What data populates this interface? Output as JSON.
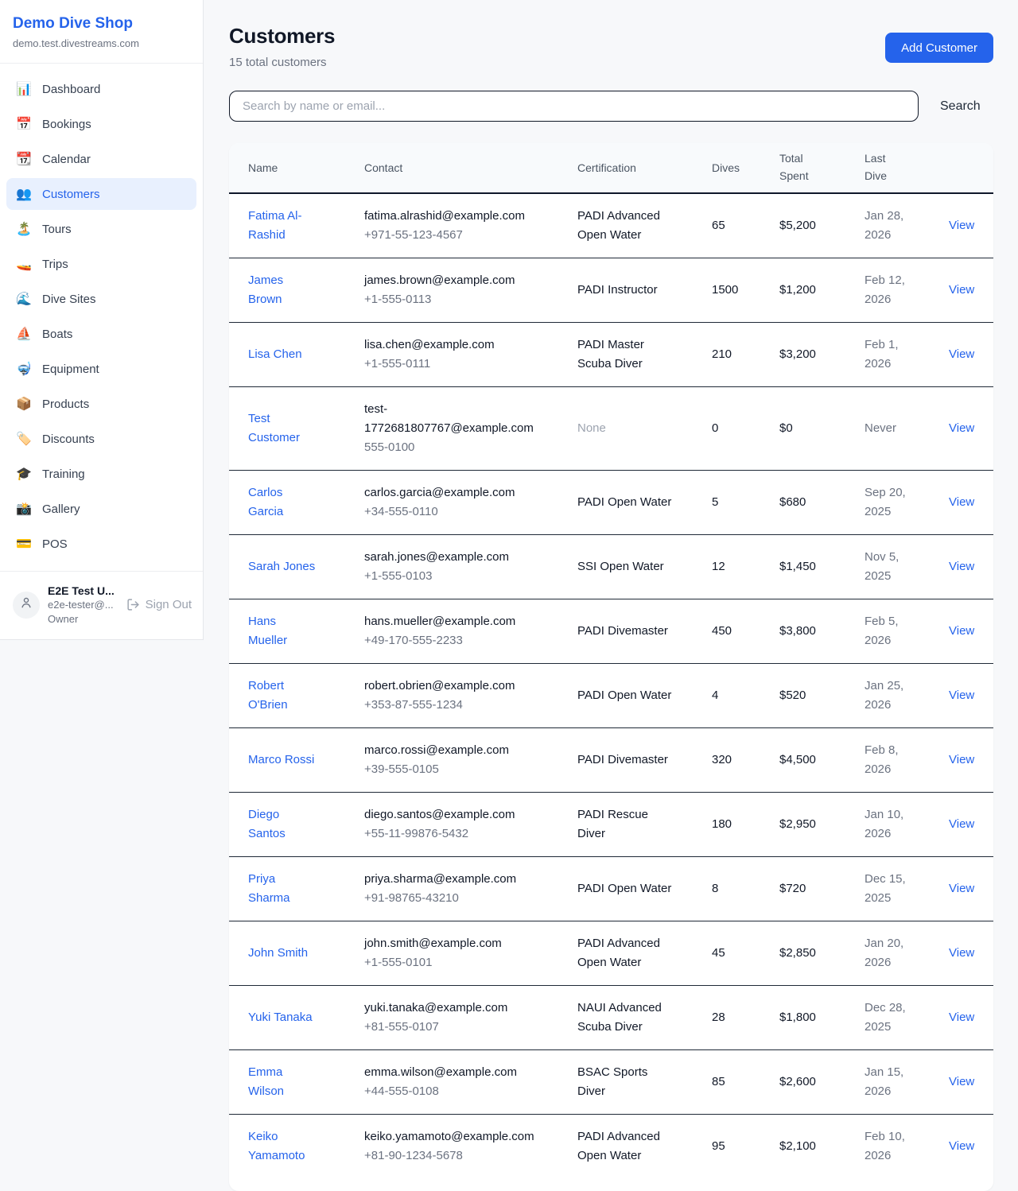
{
  "colors": {
    "accent": "#2563eb",
    "active_nav_bg": "#e8f0fe",
    "page_bg": "#f7f8fa",
    "muted_text": "#9ca3af",
    "dark_border": "#0f172a"
  },
  "sidebar": {
    "shop_name": "Demo Dive Shop",
    "shop_domain": "demo.test.divestreams.com",
    "items": [
      {
        "icon": "📊",
        "icon_name": "bar-chart-icon",
        "label": "Dashboard",
        "active": false
      },
      {
        "icon": "📅",
        "icon_name": "calendar-date-icon",
        "label": "Bookings",
        "active": false
      },
      {
        "icon": "📆",
        "icon_name": "tear-off-calendar-icon",
        "label": "Calendar",
        "active": false
      },
      {
        "icon": "👥",
        "icon_name": "people-icon",
        "label": "Customers",
        "active": true
      },
      {
        "icon": "🏝️",
        "icon_name": "island-icon",
        "label": "Tours",
        "active": false
      },
      {
        "icon": "🚤",
        "icon_name": "speedboat-icon",
        "label": "Trips",
        "active": false
      },
      {
        "icon": "🌊",
        "icon_name": "wave-icon",
        "label": "Dive Sites",
        "active": false
      },
      {
        "icon": "⛵",
        "icon_name": "sailboat-icon",
        "label": "Boats",
        "active": false
      },
      {
        "icon": "🤿",
        "icon_name": "diving-mask-icon",
        "label": "Equipment",
        "active": false
      },
      {
        "icon": "📦",
        "icon_name": "package-icon",
        "label": "Products",
        "active": false
      },
      {
        "icon": "🏷️",
        "icon_name": "tag-icon",
        "label": "Discounts",
        "active": false
      },
      {
        "icon": "🎓",
        "icon_name": "graduation-cap-icon",
        "label": "Training",
        "active": false
      },
      {
        "icon": "📸",
        "icon_name": "camera-flash-icon",
        "label": "Gallery",
        "active": false
      },
      {
        "icon": "💳",
        "icon_name": "credit-card-icon",
        "label": "POS",
        "active": false
      }
    ],
    "user": {
      "name": "E2E Test U...",
      "email": "e2e-tester@...",
      "role": "Owner",
      "sign_out_label": "Sign Out"
    }
  },
  "header": {
    "title": "Customers",
    "subtitle": "15 total customers",
    "add_button_label": "Add Customer"
  },
  "search": {
    "placeholder": "Search by name or email...",
    "button_label": "Search"
  },
  "table": {
    "columns": [
      "Name",
      "Contact",
      "Certification",
      "Dives",
      "Total Spent",
      "Last Dive"
    ],
    "view_label": "View",
    "rows": [
      {
        "name": "Fatima Al-Rashid",
        "email": "fatima.alrashid@example.com",
        "phone": "+971-55-123-4567",
        "certification": "PADI Advanced Open Water",
        "dives": "65",
        "total_spent": "$5,200",
        "last_dive": "Jan 28, 2026"
      },
      {
        "name": "James Brown",
        "email": "james.brown@example.com",
        "phone": "+1-555-0113",
        "certification": "PADI Instructor",
        "dives": "1500",
        "total_spent": "$1,200",
        "last_dive": "Feb 12, 2026"
      },
      {
        "name": "Lisa Chen",
        "email": "lisa.chen@example.com",
        "phone": "+1-555-0111",
        "certification": "PADI Master Scuba Diver",
        "dives": "210",
        "total_spent": "$3,200",
        "last_dive": "Feb 1, 2026"
      },
      {
        "name": "Test Customer",
        "email": "test-1772681807767@example.com",
        "phone": "555-0100",
        "certification": "None",
        "dives": "0",
        "total_spent": "$0",
        "last_dive": "Never"
      },
      {
        "name": "Carlos Garcia",
        "email": "carlos.garcia@example.com",
        "phone": "+34-555-0110",
        "certification": "PADI Open Water",
        "dives": "5",
        "total_spent": "$680",
        "last_dive": "Sep 20, 2025"
      },
      {
        "name": "Sarah Jones",
        "email": "sarah.jones@example.com",
        "phone": "+1-555-0103",
        "certification": "SSI Open Water",
        "dives": "12",
        "total_spent": "$1,450",
        "last_dive": "Nov 5, 2025"
      },
      {
        "name": "Hans Mueller",
        "email": "hans.mueller@example.com",
        "phone": "+49-170-555-2233",
        "certification": "PADI Divemaster",
        "dives": "450",
        "total_spent": "$3,800",
        "last_dive": "Feb 5, 2026"
      },
      {
        "name": "Robert O'Brien",
        "email": "robert.obrien@example.com",
        "phone": "+353-87-555-1234",
        "certification": "PADI Open Water",
        "dives": "4",
        "total_spent": "$520",
        "last_dive": "Jan 25, 2026"
      },
      {
        "name": "Marco Rossi",
        "email": "marco.rossi@example.com",
        "phone": "+39-555-0105",
        "certification": "PADI Divemaster",
        "dives": "320",
        "total_spent": "$4,500",
        "last_dive": "Feb 8, 2026"
      },
      {
        "name": "Diego Santos",
        "email": "diego.santos@example.com",
        "phone": "+55-11-99876-5432",
        "certification": "PADI Rescue Diver",
        "dives": "180",
        "total_spent": "$2,950",
        "last_dive": "Jan 10, 2026"
      },
      {
        "name": "Priya Sharma",
        "email": "priya.sharma@example.com",
        "phone": "+91-98765-43210",
        "certification": "PADI Open Water",
        "dives": "8",
        "total_spent": "$720",
        "last_dive": "Dec 15, 2025"
      },
      {
        "name": "John Smith",
        "email": "john.smith@example.com",
        "phone": "+1-555-0101",
        "certification": "PADI Advanced Open Water",
        "dives": "45",
        "total_spent": "$2,850",
        "last_dive": "Jan 20, 2026"
      },
      {
        "name": "Yuki Tanaka",
        "email": "yuki.tanaka@example.com",
        "phone": "+81-555-0107",
        "certification": "NAUI Advanced Scuba Diver",
        "dives": "28",
        "total_spent": "$1,800",
        "last_dive": "Dec 28, 2025"
      },
      {
        "name": "Emma Wilson",
        "email": "emma.wilson@example.com",
        "phone": "+44-555-0108",
        "certification": "BSAC Sports Diver",
        "dives": "85",
        "total_spent": "$2,600",
        "last_dive": "Jan 15, 2026"
      },
      {
        "name": "Keiko Yamamoto",
        "email": "keiko.yamamoto@example.com",
        "phone": "+81-90-1234-5678",
        "certification": "PADI Advanced Open Water",
        "dives": "95",
        "total_spent": "$2,100",
        "last_dive": "Feb 10, 2026"
      }
    ]
  }
}
